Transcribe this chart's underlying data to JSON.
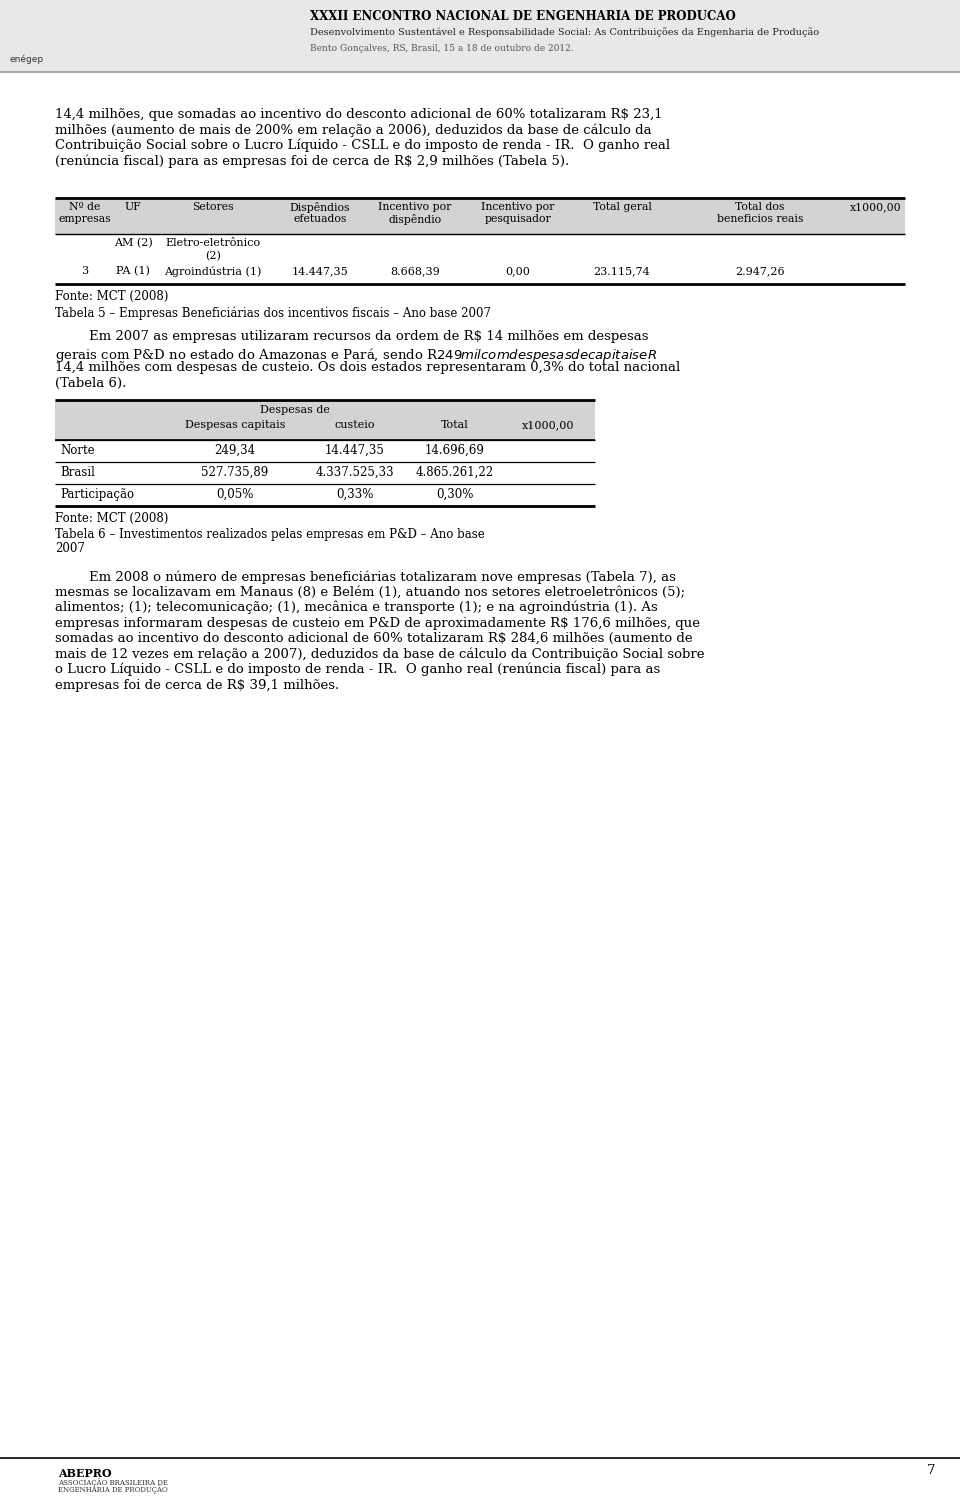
{
  "header_title": "XXXII ENCONTRO NACIONAL DE ENGENHARIA DE PRODUCAO",
  "header_sub1": "Desenvolvimento Sustentável e Responsabilidade Social: As Contribuições da Engenharia de Produção",
  "header_sub2": "Bento Gonçalves, RS, Brasil, 15 a 18 de outubro de 2012.",
  "header_bg": "#e8e8e8",
  "page_number": "7",
  "body_text1_lines": [
    "14,4 milhões, que somadas ao incentivo do desconto adicional de 60% totalizaram R$ 23,1",
    "milhões (aumento de mais de 200% em relação a 2006), deduzidos da base de cálculo da",
    "Contribuição Social sobre o Lucro Líquido - CSLL e do imposto de renda - IR.  O ganho real",
    "(renúncia fiscal) para as empresas foi de cerca de R$ 2,9 milhões (Tabela 5)."
  ],
  "table1_header_bg": "#d3d3d3",
  "table1_col_headers_line1": [
    "Nº de",
    "UF",
    "Setores",
    "Dispêndios",
    "Incentivo por",
    "Incentivo por",
    "Total geral",
    "Total dos",
    "x1000,00"
  ],
  "table1_col_headers_line2": [
    "empresas",
    "",
    "",
    "efetuados",
    "dispêndio",
    "pesquisador",
    "",
    "beneficios reais",
    ""
  ],
  "fonte1": "Fonte: MCT (2008)",
  "tabela5_caption": "Tabela 5 – Empresas Beneficiárias dos incentivos fiscais – Ano base 2007",
  "body_text2_lines": [
    "        Em 2007 as empresas utilizaram recursos da ordem de R$ 14 milhões em despesas",
    "gerais com P&D no estado do Amazonas e Pará, sendo R$ 249 mil com despesas de capitais e R$",
    "14,4 milhões com despesas de custeio. Os dois estados representaram 0,3% do total nacional",
    "(Tabela 6)."
  ],
  "table2_header_bg": "#d3d3d3",
  "fonte2": "Fonte: MCT (2008)",
  "tabela6_caption_lines": [
    "Tabela 6 – Investimentos realizados pelas empresas em P&D – Ano base",
    "2007"
  ],
  "body_text3_lines": [
    "        Em 2008 o número de empresas beneficiárias totalizaram nove empresas (Tabela 7), as",
    "mesmas se localizavam em Manaus (8) e Belém (1), atuando nos setores eletroeletrônicos (5);",
    "alimentos; (1); telecomunicação; (1), mecânica e transporte (1); e na agroindústria (1). As",
    "empresas informaram despesas de custeio em P&D de aproximadamente R$ 176,6 milhões, que",
    "somadas ao incentivo do desconto adicional de 60% totalizaram R$ 284,6 milhões (aumento de",
    "mais de 12 vezes em relação a 2007), deduzidos da base de cálculo da Contribuição Social sobre",
    "o Lucro Líquido - CSLL e do imposto de renda - IR.  O ganho real (renúncia fiscal) para as",
    "empresas foi de cerca de R$ 39,1 milhões."
  ],
  "footer_line_color": "#000000",
  "bg_color": "#ffffff",
  "text_color": "#000000"
}
